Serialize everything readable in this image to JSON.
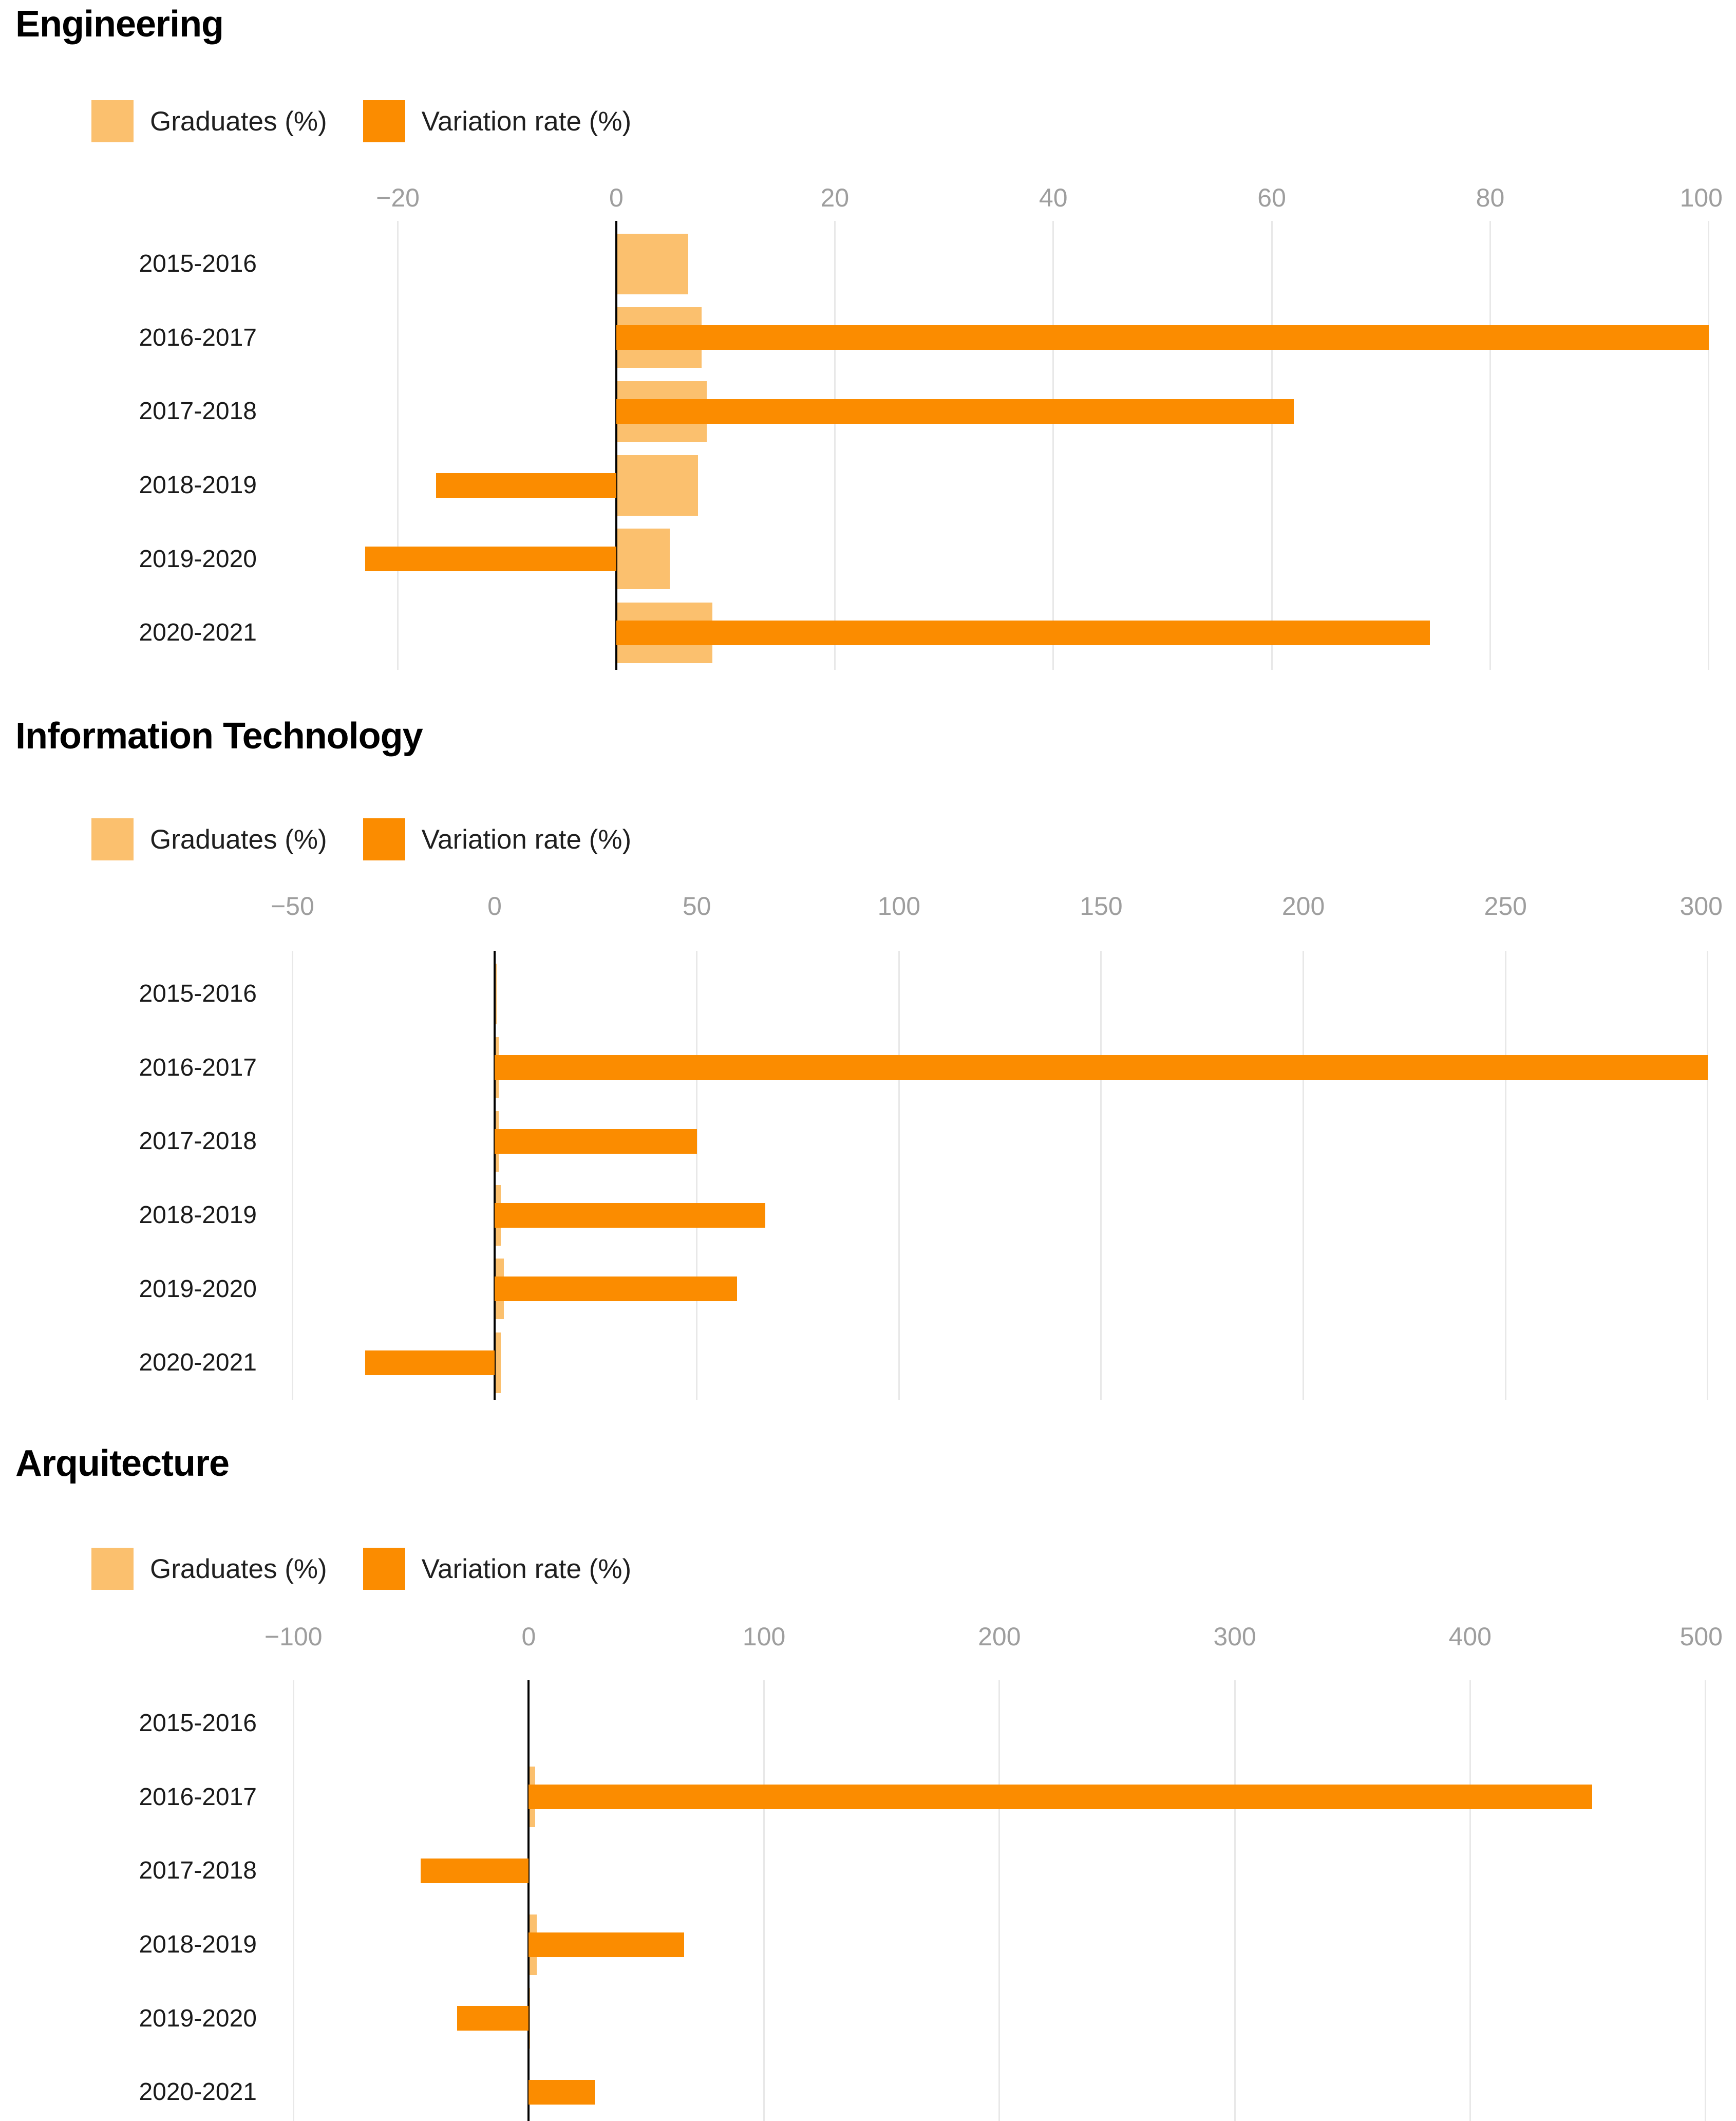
{
  "colors": {
    "graduates": "#FBC06E",
    "variation": "#FB8C00",
    "gridline": "#e8e8e8",
    "zero_line": "#000000",
    "tick_text": "#9e9e9e",
    "category_text": "#1a1a1a",
    "title_text": "#000000",
    "background": "#ffffff"
  },
  "legend": {
    "graduates_label": "Graduates (%)",
    "variation_label": "Variation rate (%)"
  },
  "chart_data": [
    {
      "type": "bar",
      "title": "Engineering",
      "orientation": "horizontal",
      "grid": true,
      "legend_position": "top-left",
      "categories": [
        "2015-2016",
        "2016-2017",
        "2017-2018",
        "2018-2019",
        "2019-2020",
        "2020-2021"
      ],
      "series": [
        {
          "name": "Graduates (%)",
          "color": "#FBC06E",
          "values": [
            6.6,
            7.8,
            8.3,
            7.5,
            4.9,
            8.8
          ]
        },
        {
          "name": "Variation rate (%)",
          "color": "#FB8C00",
          "values": [
            0,
            100,
            62,
            -16.5,
            -23,
            74.5
          ]
        }
      ],
      "xlim": [
        -31.5,
        102.5
      ],
      "ticks": [
        {
          "label": "−20",
          "value": -20
        },
        {
          "label": "0",
          "value": 0
        },
        {
          "label": "20",
          "value": 20
        },
        {
          "label": "40",
          "value": 40
        },
        {
          "label": "60",
          "value": 60
        },
        {
          "label": "80",
          "value": 80
        },
        {
          "label": "100",
          "value": 100
        }
      ]
    },
    {
      "type": "bar",
      "title": "Information Technology",
      "orientation": "horizontal",
      "grid": true,
      "legend_position": "top-left",
      "categories": [
        "2015-2016",
        "2016-2017",
        "2017-2018",
        "2018-2019",
        "2019-2020",
        "2020-2021"
      ],
      "series": [
        {
          "name": "Graduates (%)",
          "color": "#FBC06E",
          "values": [
            0.5,
            1.0,
            1.0,
            1.5,
            2.3,
            1.5
          ]
        },
        {
          "name": "Variation rate (%)",
          "color": "#FB8C00",
          "values": [
            0,
            300,
            50,
            67,
            60,
            -32
          ]
        }
      ],
      "xlim": [
        -55,
        307
      ],
      "ticks": [
        {
          "label": "−50",
          "value": -50
        },
        {
          "label": "0",
          "value": 0
        },
        {
          "label": "50",
          "value": 50
        },
        {
          "label": "100",
          "value": 100
        },
        {
          "label": "150",
          "value": 150
        },
        {
          "label": "200",
          "value": 200
        },
        {
          "label": "250",
          "value": 250
        },
        {
          "label": "300",
          "value": 300
        }
      ]
    },
    {
      "type": "bar",
      "title": "Arquitecture",
      "orientation": "horizontal",
      "grid": true,
      "legend_position": "top-left",
      "categories": [
        "2015-2016",
        "2016-2017",
        "2017-2018",
        "2018-2019",
        "2019-2020",
        "2020-2021"
      ],
      "series": [
        {
          "name": "Graduates (%)",
          "color": "#FBC06E",
          "values": [
            0.2,
            2.8,
            0.4,
            3.5,
            0.5,
            0.3
          ]
        },
        {
          "name": "Variation rate (%)",
          "color": "#FB8C00",
          "values": [
            0,
            452,
            -46,
            66,
            -30.5,
            28
          ]
        }
      ],
      "xlim": [
        -109,
        513
      ],
      "ticks": [
        {
          "label": "−100",
          "value": -100
        },
        {
          "label": "0",
          "value": 0
        },
        {
          "label": "100",
          "value": 100
        },
        {
          "label": "200",
          "value": 200
        },
        {
          "label": "300",
          "value": 300
        },
        {
          "label": "400",
          "value": 400
        },
        {
          "label": "500",
          "value": 500
        }
      ]
    }
  ]
}
